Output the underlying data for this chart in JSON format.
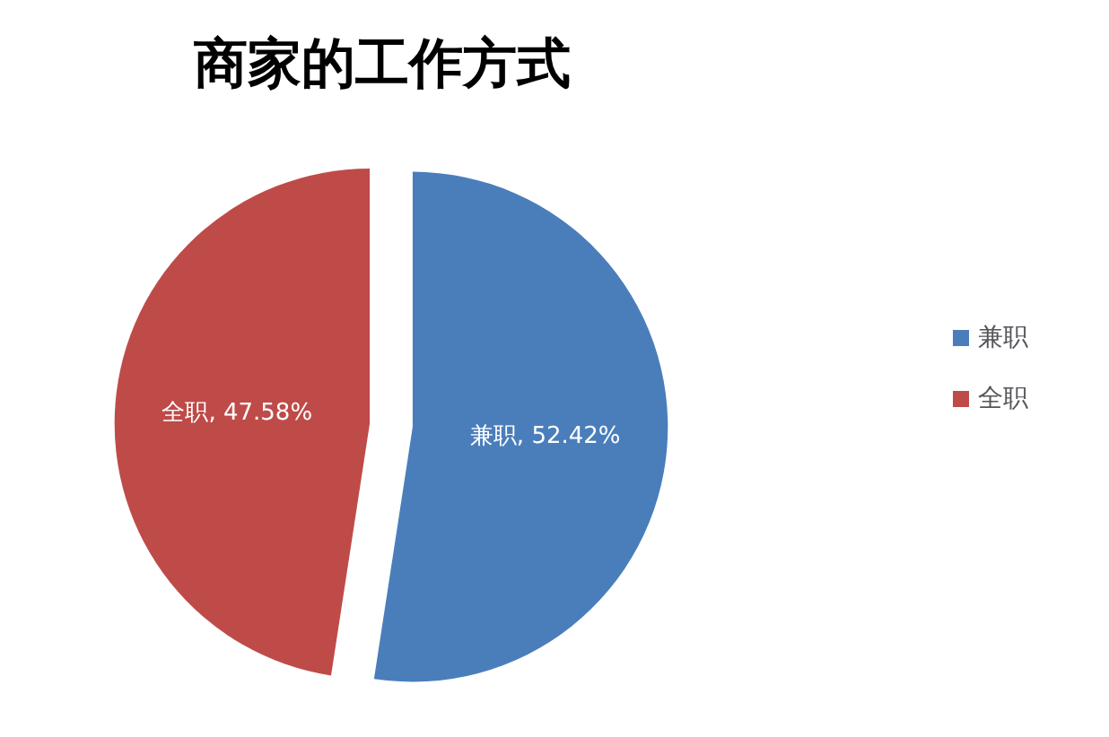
{
  "chart_data": {
    "type": "pie",
    "title": "商家的工作方式",
    "categories": [
      "兼职",
      "全职"
    ],
    "values": [
      52.42,
      47.58
    ],
    "value_labels": [
      "兼职, 52.42%",
      "全职, 47.58%"
    ],
    "colors": [
      "#4a7ebb",
      "#be4b48"
    ],
    "legend": "right"
  }
}
